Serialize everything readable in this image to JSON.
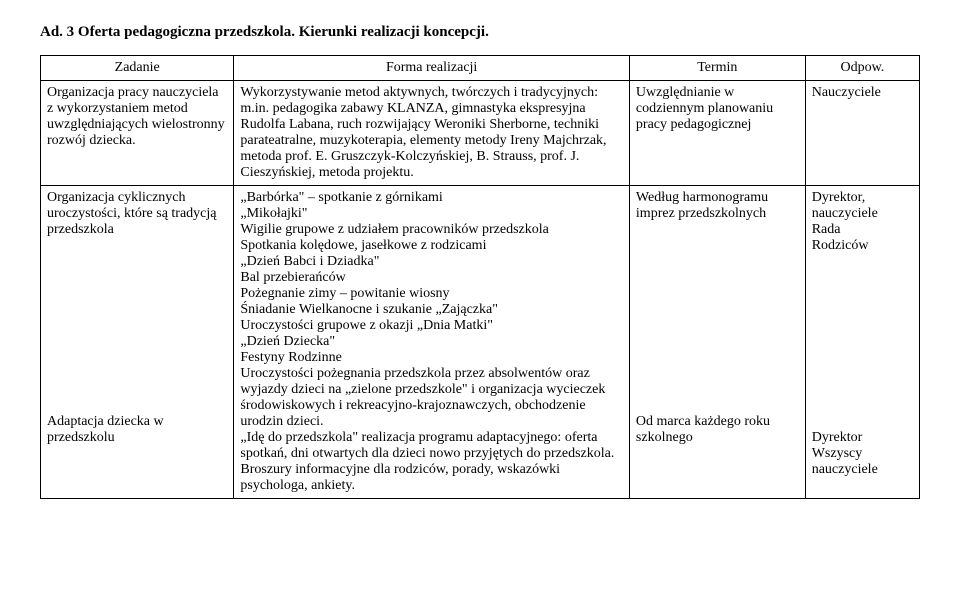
{
  "heading": "Ad. 3 Oferta pedagogiczna przedszkola. Kierunki realizacji koncepcji.",
  "columns": [
    "Zadanie",
    "Forma realizacji",
    "Termin",
    "Odpow."
  ],
  "rows": [
    {
      "zadanie": "Organizacja pracy nauczyciela z wykorzystaniem metod uwzględniających wielostronny rozwój dziecka.",
      "forma": "Wykorzystywanie metod aktywnych, twórczych i tradycyjnych: m.in. pedagogika zabawy KLANZA, gimnastyka ekspresyjna Rudolfa Labana, ruch rozwijający Weroniki Sherborne, techniki parateatralne, muzykoterapia, elementy metody Ireny Majchrzak, metoda prof. E. Gruszczyk-Kolczyńskiej, B. Strauss, prof. J. Cieszyńskiej, metoda projektu.",
      "termin": "Uwzględnianie w codziennym planowaniu pracy pedagogicznej",
      "odpow": "Nauczyciele"
    },
    {
      "zadanie_a": "Organizacja cyklicznych uroczystości, które są tradycją przedszkola",
      "zadanie_b": "Adaptacja dziecka w przedszkolu",
      "forma_a": "„Barbórka\" – spotkanie z górnikami\n„Mikołajki\"\nWigilie grupowe z udziałem pracowników przedszkola\nSpotkania kolędowe, jasełkowe z rodzicami\n„Dzień Babci i Dziadka\"\nBal przebierańców\nPożegnanie zimy – powitanie wiosny\nŚniadanie Wielkanocne i szukanie „Zajączka\"\nUroczystości grupowe z okazji „Dnia Matki\"\n„Dzień Dziecka\"\nFestyny Rodzinne\nUroczystości pożegnania przedszkola przez absolwentów oraz wyjazdy dzieci na „zielone przedszkole\" i organizacja wycieczek środowiskowych i rekreacyjno-krajoznawczych, obchodzenie urodzin dzieci.",
      "forma_b": "„Idę do przedszkola\" realizacja programu adaptacyjnego: oferta spotkań, dni otwartych dla dzieci nowo przyjętych do przedszkola. Broszury informacyjne dla rodziców, porady, wskazówki psychologa, ankiety.",
      "termin_a": "Według harmonogramu imprez przedszkolnych",
      "termin_b": "Od marca każdego roku szkolnego",
      "odpow_a": "Dyrektor,\nnauczyciele\nRada\nRodziców",
      "odpow_b": "Dyrektor\nWszyscy\nnauczyciele"
    }
  ]
}
